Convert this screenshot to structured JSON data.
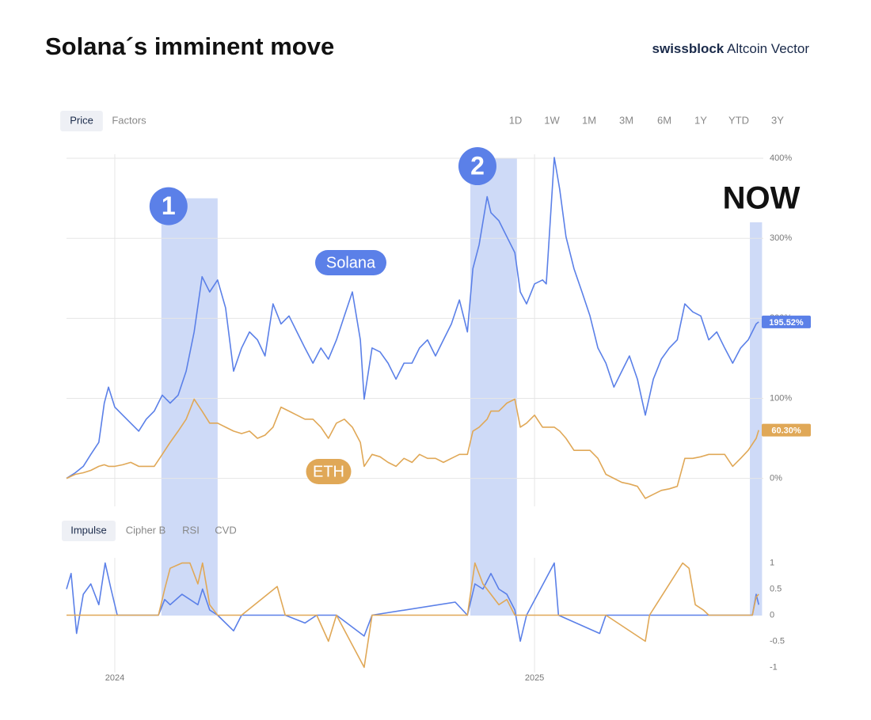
{
  "header": {
    "title": "Solana´s imminent move",
    "brand": "swissblock",
    "product": "Altcoin Vector"
  },
  "tabs": {
    "top": [
      "Price",
      "Factors"
    ],
    "top_active": 0,
    "ranges": [
      "1D",
      "1W",
      "1M",
      "3M",
      "6M",
      "1Y",
      "YTD",
      "3Y"
    ],
    "indicators": [
      "Impulse",
      "Cipher B",
      "RSI",
      "CVD"
    ],
    "indicators_active": 0
  },
  "chart_data": [
    {
      "type": "line",
      "x": [
        2023.885,
        2023.906,
        2023.925,
        2023.943,
        2023.962,
        2023.975,
        2023.985,
        2024.0,
        2024.019,
        2024.038,
        2024.057,
        2024.075,
        2024.094,
        2024.113,
        2024.132,
        2024.151,
        2024.17,
        2024.189,
        2024.208,
        2024.226,
        2024.245,
        2024.264,
        2024.283,
        2024.302,
        2024.321,
        2024.34,
        2024.358,
        2024.377,
        2024.396,
        2024.415,
        2024.434,
        2024.453,
        2024.472,
        2024.491,
        2024.509,
        2024.528,
        2024.547,
        2024.566,
        2024.585,
        2024.594,
        2024.613,
        2024.632,
        2024.651,
        2024.67,
        2024.689,
        2024.708,
        2024.726,
        2024.745,
        2024.764,
        2024.783,
        2024.802,
        2024.821,
        2024.84,
        2024.853,
        2024.868,
        2024.887,
        2024.896,
        2024.915,
        2024.934,
        2024.953,
        2024.966,
        2024.981,
        2025.0,
        2025.019,
        2025.028,
        2025.047,
        2025.06,
        2025.075,
        2025.094,
        2025.113,
        2025.132,
        2025.151,
        2025.17,
        2025.189,
        2025.208,
        2025.226,
        2025.245,
        2025.264,
        2025.283,
        2025.302,
        2025.321,
        2025.34,
        2025.358,
        2025.377,
        2025.396,
        2025.415,
        2025.434,
        2025.453,
        2025.472,
        2025.491,
        2025.509,
        2025.528,
        2025.534
      ],
      "series": [
        {
          "name": "Solana",
          "color": "#5b80e8",
          "current": 195.52,
          "current_label": "195.52%",
          "values": [
            0,
            7,
            15,
            30,
            45,
            94,
            114,
            89,
            79,
            69,
            59,
            74,
            84,
            104,
            94,
            104,
            134,
            183,
            252,
            233,
            248,
            213,
            134,
            163,
            183,
            173,
            153,
            218,
            193,
            203,
            183,
            163,
            144,
            163,
            149,
            173,
            203,
            233,
            173,
            99,
            163,
            158,
            144,
            124,
            144,
            144,
            163,
            173,
            153,
            173,
            193,
            223,
            183,
            262,
            292,
            352,
            332,
            322,
            302,
            282,
            233,
            218,
            243,
            248,
            243,
            401,
            361,
            302,
            262,
            233,
            203,
            163,
            144,
            114,
            134,
            153,
            124,
            79,
            124,
            149,
            163,
            173,
            218,
            208,
            203,
            173,
            183,
            163,
            144,
            163,
            173,
            193,
            195.52
          ]
        },
        {
          "name": "ETH",
          "color": "#e0a857",
          "current": 60.3,
          "current_label": "60.30%",
          "values": [
            0,
            5,
            7,
            10,
            15,
            17,
            15,
            15,
            17,
            20,
            15,
            15,
            15,
            30,
            45,
            59,
            74,
            99,
            84,
            69,
            69,
            64,
            59,
            56,
            59,
            50,
            54,
            64,
            89,
            84,
            79,
            74,
            74,
            64,
            50,
            69,
            74,
            64,
            45,
            15,
            30,
            27,
            20,
            15,
            25,
            20,
            30,
            25,
            25,
            20,
            25,
            30,
            30,
            59,
            64,
            74,
            84,
            84,
            94,
            99,
            64,
            69,
            79,
            64,
            64,
            64,
            59,
            50,
            35,
            35,
            35,
            25,
            5,
            0,
            -5,
            -7,
            -10,
            -25,
            -20,
            -15,
            -13,
            -10,
            25,
            25,
            27,
            30,
            30,
            30,
            15,
            25,
            35,
            50,
            60.3
          ]
        }
      ],
      "xlim": [
        2023.885,
        2025.545
      ],
      "xticks": [
        2024,
        2025
      ],
      "ylim": [
        -35,
        405
      ],
      "yticks": [
        {
          "value": 0,
          "label": "0%"
        },
        {
          "value": 100,
          "label": "100%"
        },
        {
          "value": 200,
          "label": "200%"
        },
        {
          "value": 300,
          "label": "300%"
        },
        {
          "value": 400,
          "label": "400%"
        }
      ],
      "grid": true,
      "highlights": [
        {
          "label": "1",
          "marker": "circle",
          "x0": 2024.111,
          "x1": 2024.245,
          "top": 350
        },
        {
          "label": "2",
          "marker": "circle",
          "x0": 2024.847,
          "x1": 2024.958,
          "top": 400
        },
        {
          "label": "NOW",
          "marker": "text",
          "x0": 2025.513,
          "x1": 2025.542,
          "top": 320
        }
      ]
    },
    {
      "type": "line",
      "x": [
        2023.885,
        2023.896,
        2023.909,
        2023.925,
        2023.943,
        2023.962,
        2023.977,
        2023.991,
        2024.006,
        2024.104,
        2024.119,
        2024.132,
        2024.16,
        2024.179,
        2024.198,
        2024.209,
        2024.226,
        2024.245,
        2024.283,
        2024.302,
        2024.387,
        2024.406,
        2024.453,
        2024.481,
        2024.509,
        2024.528,
        2024.594,
        2024.613,
        2024.811,
        2024.84,
        2024.858,
        2024.877,
        2024.896,
        2024.915,
        2024.934,
        2024.953,
        2024.966,
        2024.981,
        2025.047,
        2025.057,
        2025.155,
        2025.17,
        2025.264,
        2025.274,
        2025.353,
        2025.368,
        2025.383,
        2025.402,
        2025.415,
        2025.519,
        2025.528,
        2025.534
      ],
      "series": [
        {
          "color": "#5b80e8",
          "values": [
            0.5,
            0.8,
            -0.35,
            0.4,
            0.6,
            0.2,
            1,
            0.5,
            0,
            0,
            0.3,
            0.2,
            0.4,
            0.3,
            0.2,
            0.5,
            0.1,
            0,
            -0.3,
            0,
            0,
            0,
            -0.15,
            0,
            0,
            0,
            -0.4,
            0,
            0.25,
            0,
            0.6,
            0.5,
            0.8,
            0.5,
            0.4,
            0.1,
            -0.5,
            0,
            1,
            0,
            -0.35,
            0,
            0,
            0,
            0,
            0,
            0,
            0,
            0,
            0,
            0.4,
            0.2
          ]
        },
        {
          "color": "#e0a857",
          "values": [
            0,
            0,
            0,
            0,
            0,
            0,
            0,
            0,
            0,
            0,
            0.5,
            0.9,
            1,
            1,
            0.6,
            1,
            0.2,
            0,
            0,
            0,
            0.55,
            0,
            0,
            0,
            -0.5,
            0,
            -1,
            0,
            0,
            0,
            1,
            0.6,
            0.4,
            0.2,
            0.3,
            0,
            0,
            0,
            0,
            0,
            0,
            0,
            -0.5,
            0,
            1,
            0.9,
            0.2,
            0.1,
            0,
            0,
            0.35,
            0.4
          ]
        }
      ],
      "xlim": [
        2023.885,
        2025.545
      ],
      "xticks": [
        2024,
        2025
      ],
      "ylim": [
        -1.1,
        1.1
      ],
      "yticks": [
        1,
        0.5,
        0,
        -0.5,
        -1
      ]
    }
  ]
}
